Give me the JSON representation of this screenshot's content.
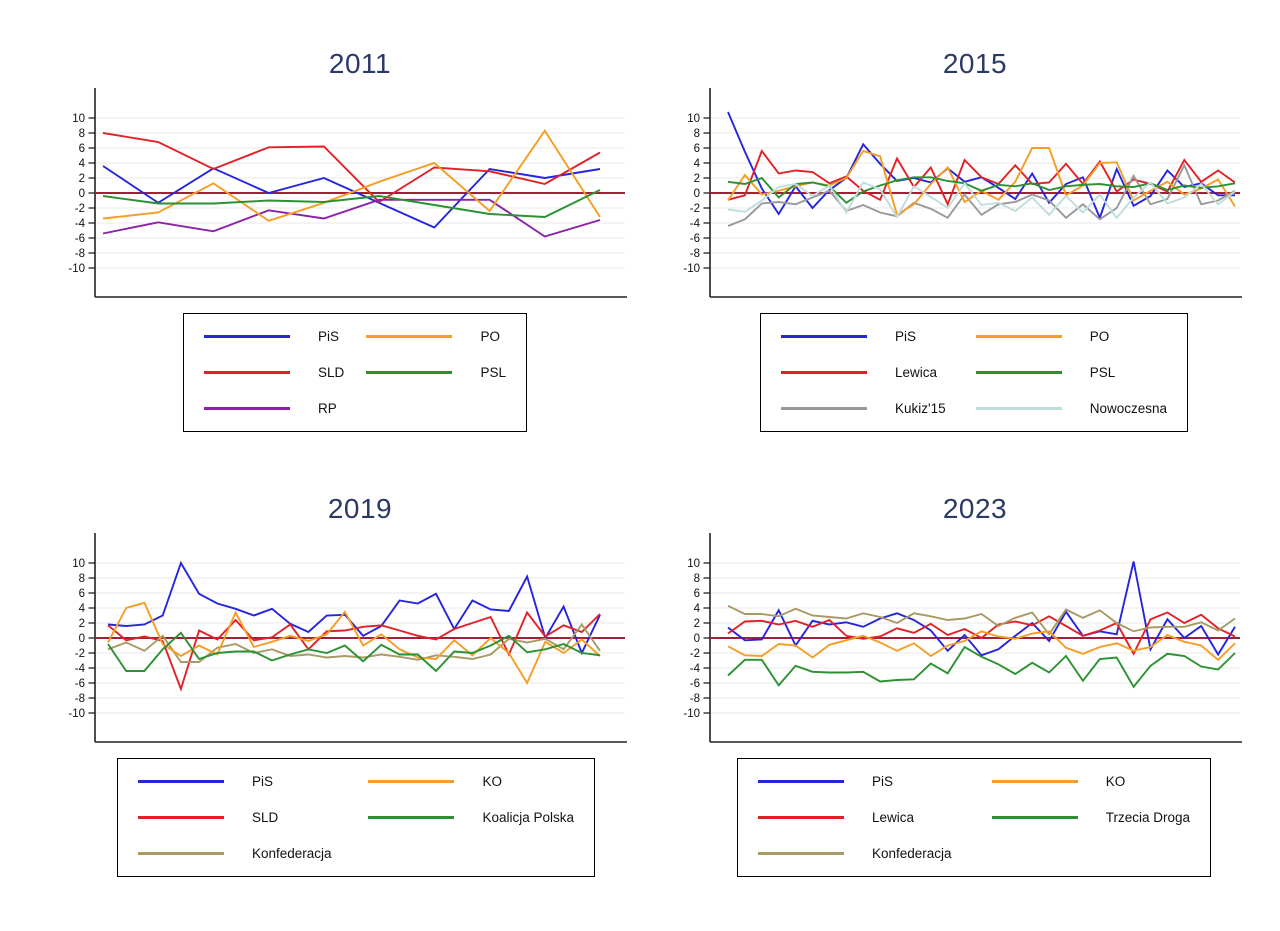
{
  "figure": {
    "background": "#ffffff",
    "title_color": "#2b3a64",
    "axis_color": "#222222",
    "grid_color": "#eaeaea",
    "tick_label_color": "#111111",
    "zero_line_color": "#9d2235",
    "legend_columns": 2
  },
  "chart_data": [
    {
      "type": "line",
      "title": "2011",
      "xlabel": "",
      "ylabel": "",
      "ylim": [
        -10,
        10
      ],
      "y_ticks": [
        10,
        8,
        6,
        4,
        2,
        0,
        -2,
        -4,
        -6,
        -8,
        -10
      ],
      "grid": true,
      "zero_line": 0,
      "legend_position": "below",
      "series": [
        {
          "name": "PiS",
          "color": "#2425dd",
          "values": [
            3.6,
            -1.3,
            3.3,
            0.0,
            2.0,
            -1.3,
            -4.6,
            3.2,
            2.0,
            3.2
          ]
        },
        {
          "name": "SLD",
          "color": "#e02228",
          "values": [
            8.0,
            6.8,
            3.2,
            6.1,
            6.2,
            -1.2,
            3.4,
            2.9,
            1.2,
            5.4
          ]
        },
        {
          "name": "RP",
          "color": "#8b21a8",
          "values": [
            -5.4,
            -3.9,
            -5.1,
            -2.3,
            -3.4,
            -0.9,
            -0.9,
            -0.9,
            -5.8,
            -3.6
          ]
        },
        {
          "name": "PO",
          "color": "#f59d24",
          "values": [
            -3.4,
            -2.6,
            1.3,
            -3.7,
            -1.3,
            1.5,
            4.0,
            -2.4,
            8.3,
            -3.2
          ]
        },
        {
          "name": "PSL",
          "color": "#2b9232",
          "values": [
            -0.4,
            -1.4,
            -1.4,
            -1.0,
            -1.2,
            -0.4,
            -1.6,
            -2.8,
            -3.2,
            0.4
          ]
        }
      ]
    },
    {
      "type": "line",
      "title": "2015",
      "xlabel": "",
      "ylabel": "",
      "ylim": [
        -10,
        10
      ],
      "y_ticks": [
        10,
        8,
        6,
        4,
        2,
        0,
        -2,
        -4,
        -6,
        -8,
        -10
      ],
      "grid": true,
      "zero_line": 0,
      "legend_position": "below",
      "series": [
        {
          "name": "PiS",
          "color": "#2425dd",
          "values": [
            10.8,
            5.5,
            0.6,
            -2.8,
            0.9,
            -2.0,
            0.4,
            2.0,
            6.5,
            3.9,
            1.6,
            2.0,
            1.4,
            3.3,
            1.5,
            2.1,
            0.7,
            -0.8,
            2.6,
            -1.3,
            1.2,
            2.1,
            -3.3,
            3.2,
            -1.7,
            -0.4,
            3.0,
            0.8,
            1.3,
            -0.3,
            -0.3
          ]
        },
        {
          "name": "Lewica",
          "color": "#e02228",
          "values": [
            -0.9,
            -0.3,
            5.6,
            2.6,
            3.0,
            2.8,
            1.3,
            2.2,
            0.3,
            -0.9,
            4.6,
            0.8,
            3.4,
            -1.5,
            4.4,
            2.1,
            1.2,
            3.7,
            1.2,
            1.4,
            3.9,
            1.2,
            4.2,
            0.2,
            1.8,
            1.2,
            0.2,
            4.4,
            1.5,
            3.0,
            1.4
          ]
        },
        {
          "name": "Kukiz'15",
          "color": "#999999",
          "values": [
            -4.4,
            -3.5,
            -1.4,
            -1.2,
            -1.5,
            -0.6,
            0.3,
            -2.4,
            -1.6,
            -2.6,
            -3.1,
            -1.3,
            -2.1,
            -3.3,
            -0.2,
            -2.9,
            -1.5,
            -1.2,
            -0.2,
            -1.0,
            -3.3,
            -1.5,
            -3.5,
            -2.0,
            2.3,
            -1.5,
            -0.8,
            3.7,
            -1.5,
            -1.0,
            0.3
          ]
        },
        {
          "name": "PO",
          "color": "#f59d24",
          "values": [
            -1.0,
            2.4,
            -0.2,
            0.3,
            0.9,
            1.4,
            1.0,
            2.0,
            5.6,
            4.9,
            -2.9,
            -1.5,
            1.2,
            3.4,
            -1.2,
            0.3,
            -0.9,
            1.5,
            6.0,
            6.0,
            -0.3,
            1.0,
            4.0,
            4.1,
            -1.0,
            0.3,
            1.5,
            -0.2,
            0.6,
            1.8,
            -1.8
          ]
        },
        {
          "name": "PSL",
          "color": "#2b9232",
          "values": [
            1.5,
            1.2,
            2.0,
            -0.6,
            1.2,
            1.4,
            0.9,
            -1.3,
            0.2,
            1.0,
            1.7,
            2.1,
            2.1,
            1.6,
            1.3,
            0.3,
            1.1,
            0.9,
            1.3,
            0.4,
            0.9,
            1.1,
            1.2,
            0.9,
            0.8,
            1.3,
            0.4,
            1.0,
            0.7,
            0.9,
            1.3
          ]
        },
        {
          "name": "Nowoczesna",
          "color": "#bedede",
          "values": [
            -2.2,
            -2.5,
            -1.0,
            0.8,
            1.2,
            -0.4,
            1.0,
            -2.6,
            1.4,
            0.5,
            -3.2,
            0.9,
            -0.5,
            -2.0,
            1.3,
            -1.6,
            -1.3,
            -2.4,
            -0.6,
            -2.9,
            -0.4,
            -2.6,
            -0.2,
            -3.3,
            -0.6,
            1.4,
            -1.4,
            -0.6,
            1.2,
            -1.5,
            0.2
          ]
        }
      ]
    },
    {
      "type": "line",
      "title": "2019",
      "xlabel": "",
      "ylabel": "",
      "ylim": [
        -10,
        10
      ],
      "y_ticks": [
        10,
        8,
        6,
        4,
        2,
        0,
        -2,
        -4,
        -6,
        -8,
        -10
      ],
      "grid": true,
      "zero_line": 0,
      "legend_position": "below",
      "series": [
        {
          "name": "PiS",
          "color": "#2425dd",
          "values": [
            1.8,
            1.6,
            1.8,
            3.0,
            10.0,
            5.9,
            4.6,
            3.9,
            3.0,
            3.9,
            1.9,
            0.8,
            3.0,
            3.1,
            0.3,
            1.6,
            5.0,
            4.6,
            5.9,
            1.2,
            5.0,
            3.8,
            3.6,
            8.2,
            0.0,
            4.2,
            -2.0,
            3.1
          ]
        },
        {
          "name": "SLD",
          "color": "#e02228",
          "values": [
            1.7,
            -0.3,
            0.2,
            -0.4,
            -6.8,
            1.0,
            -0.2,
            2.4,
            -0.3,
            0.1,
            1.8,
            -1.5,
            0.9,
            1.0,
            1.5,
            1.7,
            1.0,
            0.3,
            -0.2,
            1.2,
            2.0,
            2.8,
            -2.2,
            3.4,
            0.2,
            1.7,
            0.8,
            3.2
          ]
        },
        {
          "name": "Konfederacja",
          "color": "#a89a64",
          "values": [
            -1.5,
            -0.6,
            -1.7,
            0.3,
            -3.2,
            -3.2,
            -1.3,
            -0.8,
            -2.0,
            -1.5,
            -2.4,
            -2.2,
            -2.6,
            -2.4,
            -2.6,
            -2.2,
            -2.5,
            -2.9,
            -2.3,
            -2.5,
            -2.8,
            -2.2,
            -0.1,
            -0.6,
            -0.1,
            -1.5,
            1.8,
            -1.7
          ]
        },
        {
          "name": "KO",
          "color": "#f59d24",
          "values": [
            -0.6,
            4.0,
            4.7,
            -0.8,
            -2.4,
            -1.0,
            -2.2,
            3.4,
            -1.2,
            -0.5,
            0.3,
            -0.4,
            0.5,
            3.5,
            -1.0,
            0.5,
            -1.5,
            -2.6,
            -2.8,
            -0.3,
            -2.3,
            0.0,
            -2.0,
            -6.0,
            -0.5,
            -2.0,
            -0.2,
            -2.4
          ]
        },
        {
          "name": "Koalicja Polska",
          "color": "#2b9232",
          "values": [
            -0.8,
            -4.4,
            -4.4,
            -1.5,
            0.7,
            -2.8,
            -2.0,
            -1.8,
            -1.8,
            -3.0,
            -2.2,
            -1.5,
            -2.0,
            -1.0,
            -3.1,
            -0.9,
            -2.2,
            -2.2,
            -4.4,
            -1.8,
            -2.0,
            -1.0,
            0.3,
            -1.9,
            -1.5,
            -0.8,
            -2.0,
            -2.3
          ]
        }
      ]
    },
    {
      "type": "line",
      "title": "2023",
      "xlabel": "",
      "ylabel": "",
      "ylim": [
        -10,
        10
      ],
      "y_ticks": [
        10,
        8,
        6,
        4,
        2,
        0,
        -2,
        -4,
        -6,
        -8,
        -10
      ],
      "grid": true,
      "zero_line": 0,
      "legend_position": "below",
      "series": [
        {
          "name": "PiS",
          "color": "#2425dd",
          "values": [
            1.4,
            -0.3,
            -0.2,
            3.7,
            -1.0,
            2.3,
            1.8,
            2.1,
            1.5,
            2.6,
            3.3,
            2.4,
            1.0,
            -1.7,
            0.4,
            -2.3,
            -1.5,
            0.3,
            2.0,
            -0.4,
            3.5,
            0.3,
            0.9,
            0.5,
            10.2,
            -1.5,
            2.5,
            0.0,
            1.6,
            -2.2,
            1.5
          ]
        },
        {
          "name": "Lewica",
          "color": "#e02228",
          "values": [
            0.6,
            2.2,
            2.3,
            1.8,
            2.3,
            1.5,
            2.4,
            0.3,
            -0.1,
            0.2,
            1.3,
            0.7,
            1.9,
            0.4,
            1.2,
            0.0,
            1.8,
            2.2,
            1.7,
            2.9,
            1.6,
            0.3,
            1.0,
            2.0,
            -2.1,
            2.5,
            3.4,
            2.0,
            3.1,
            1.3,
            0.2
          ]
        },
        {
          "name": "Konfederacja",
          "color": "#a89a64",
          "values": [
            4.3,
            3.2,
            3.2,
            2.9,
            3.9,
            3.0,
            2.8,
            2.6,
            3.3,
            2.8,
            2.0,
            3.3,
            2.9,
            2.4,
            2.6,
            3.2,
            1.6,
            2.7,
            3.4,
            0.5,
            3.8,
            2.7,
            3.7,
            2.0,
            0.9,
            1.4,
            1.5,
            1.5,
            2.1,
            1.0,
            2.6
          ]
        },
        {
          "name": "KO",
          "color": "#f59d24",
          "values": [
            -1.1,
            -2.3,
            -2.4,
            -0.8,
            -1.0,
            -2.6,
            -0.9,
            -0.3,
            0.3,
            -0.6,
            -1.7,
            -0.7,
            -2.4,
            -1.0,
            -0.4,
            0.9,
            0.2,
            -0.1,
            0.6,
            0.9,
            -1.3,
            -2.1,
            -1.2,
            -0.7,
            -1.7,
            -1.2,
            0.4,
            -0.5,
            -1.0,
            -2.9,
            -0.7
          ]
        },
        {
          "name": "Trzecia Droga",
          "color": "#2b9232",
          "values": [
            -5.0,
            -2.9,
            -2.9,
            -6.3,
            -3.7,
            -4.5,
            -4.6,
            -4.6,
            -4.5,
            -5.8,
            -5.6,
            -5.5,
            -3.4,
            -4.7,
            -1.2,
            -2.5,
            -3.5,
            -4.8,
            -3.3,
            -4.6,
            -2.4,
            -5.7,
            -2.8,
            -2.6,
            -6.5,
            -3.7,
            -2.1,
            -2.4,
            -3.8,
            -4.2,
            -2.0
          ]
        }
      ]
    }
  ]
}
